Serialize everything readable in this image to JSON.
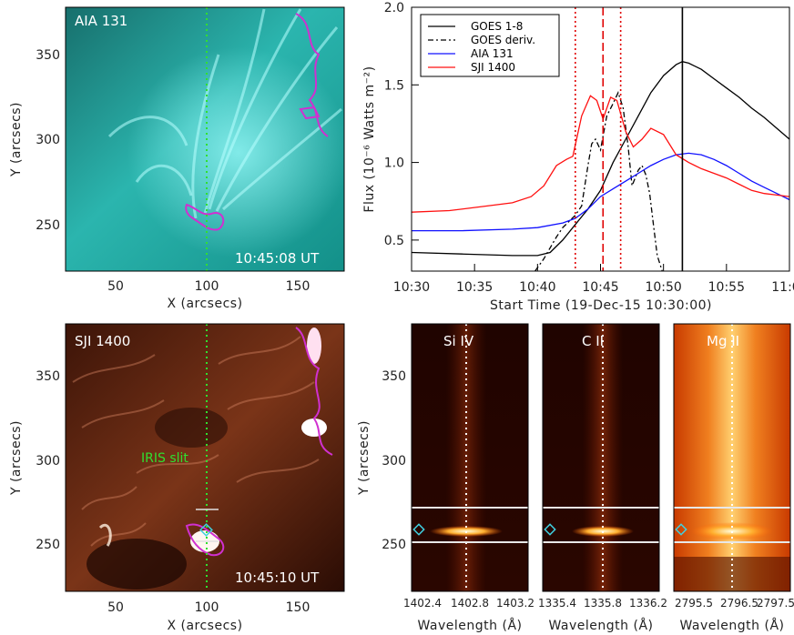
{
  "panels": {
    "aia": {
      "label": "AIA 131",
      "time": "10:45:08 UT",
      "xlabel": "X (arcsecs)",
      "ylabel": "Y (arcsecs)",
      "xticks": [
        "50",
        "100",
        "150"
      ],
      "yticks": [
        "250",
        "300",
        "350"
      ]
    },
    "sji": {
      "label": "SJI 1400",
      "time": "10:45:10 UT",
      "slit_label": "IRIS slit",
      "xlabel": "X (arcsecs)",
      "ylabel": "Y (arcsecs)",
      "xticks": [
        "50",
        "100",
        "150"
      ],
      "yticks": [
        "250",
        "300",
        "350"
      ]
    },
    "spectra": {
      "ylabel": "Y (arcsecs)",
      "yticks": [
        "250",
        "300",
        "350"
      ],
      "xlabel": "Wavelength (Å)",
      "items": [
        {
          "label": "Si IV",
          "ticks": [
            "1402.4",
            "1402.8",
            "1403.2"
          ]
        },
        {
          "label": "C II",
          "ticks": [
            "1335.4",
            "1335.8",
            "1336.2"
          ]
        },
        {
          "label": "Mg II",
          "ticks": [
            "2795.5",
            "2796.5",
            "2797.5"
          ]
        }
      ]
    }
  },
  "chart_data": {
    "type": "line",
    "xlabel": "Start Time (19-Dec-15 10:30:00)",
    "ylabel": "Flux (10⁻⁶ Watts m⁻²)",
    "xticks": [
      "10:30",
      "10:35",
      "10:40",
      "10:45",
      "10:50",
      "10:55",
      "11:0"
    ],
    "yticks": [
      "0.5",
      "1.0",
      "1.5",
      "2.0"
    ],
    "xlim_minutes": [
      0,
      30
    ],
    "ylim": [
      0.3,
      2.0
    ],
    "legend_position": "top-left",
    "vlines": [
      {
        "minute": 13.0,
        "style": "dotted",
        "color": "#e00000"
      },
      {
        "minute": 15.2,
        "style": "dashed",
        "color": "#e00000"
      },
      {
        "minute": 16.6,
        "style": "dotted",
        "color": "#e00000"
      },
      {
        "minute": 21.5,
        "style": "solid",
        "color": "#000000"
      }
    ],
    "series": [
      {
        "name": "GOES 1-8",
        "color": "#000000",
        "dash": "none",
        "x": [
          0,
          4,
          8,
          10,
          11,
          12,
          13,
          14,
          15,
          16,
          17,
          18,
          19,
          20,
          21,
          21.5,
          22,
          23,
          24,
          25,
          26,
          27,
          28,
          29,
          30
        ],
        "y": [
          0.42,
          0.41,
          0.4,
          0.4,
          0.42,
          0.5,
          0.6,
          0.7,
          0.82,
          1.0,
          1.15,
          1.3,
          1.45,
          1.56,
          1.63,
          1.65,
          1.64,
          1.6,
          1.54,
          1.48,
          1.42,
          1.35,
          1.29,
          1.22,
          1.15
        ]
      },
      {
        "name": "GOES deriv.",
        "color": "#000000",
        "dash": "6,3,2,3",
        "x": [
          9.8,
          10.5,
          11,
          11.5,
          12,
          12.5,
          13,
          13.5,
          14,
          14.3,
          14.6,
          15,
          15.5,
          16,
          16.4,
          16.8,
          17.2,
          17.5,
          18,
          18.3,
          18.6,
          18.9,
          19.2,
          19.5,
          19.9
        ],
        "y": [
          0.3,
          0.38,
          0.45,
          0.52,
          0.58,
          0.62,
          0.66,
          0.72,
          0.98,
          1.12,
          1.15,
          1.08,
          1.3,
          1.38,
          1.45,
          1.35,
          1.1,
          0.85,
          0.95,
          0.98,
          0.92,
          0.8,
          0.6,
          0.4,
          0.3
        ]
      },
      {
        "name": "AIA 131",
        "color": "#1010ff",
        "dash": "none",
        "x": [
          0,
          4,
          8,
          10,
          12,
          13,
          14,
          15,
          16,
          17,
          18,
          19,
          20,
          21,
          22,
          23,
          24,
          25,
          26,
          27,
          28,
          29,
          30
        ],
        "y": [
          0.56,
          0.56,
          0.57,
          0.58,
          0.61,
          0.64,
          0.7,
          0.78,
          0.83,
          0.88,
          0.93,
          0.98,
          1.02,
          1.05,
          1.06,
          1.05,
          1.02,
          0.98,
          0.93,
          0.88,
          0.84,
          0.8,
          0.76
        ]
      },
      {
        "name": "SJI 1400",
        "color": "#ff1010",
        "dash": "none",
        "x": [
          0,
          3,
          6,
          8,
          9.5,
          10.5,
          11.5,
          12.3,
          12.8,
          13.5,
          14.2,
          14.7,
          15.2,
          15.8,
          16.3,
          17,
          17.6,
          18.3,
          19,
          20,
          21,
          22,
          23,
          24,
          25,
          26,
          27,
          28,
          29,
          30
        ],
        "y": [
          0.68,
          0.69,
          0.72,
          0.74,
          0.78,
          0.85,
          0.98,
          1.02,
          1.04,
          1.3,
          1.43,
          1.4,
          1.28,
          1.42,
          1.4,
          1.2,
          1.1,
          1.15,
          1.22,
          1.18,
          1.05,
          1.0,
          0.96,
          0.93,
          0.9,
          0.86,
          0.82,
          0.8,
          0.79,
          0.78
        ]
      }
    ]
  },
  "colors": {
    "aia_bg": "#1ea5a0",
    "sji_bg": "#5a2410",
    "contour": "#d030d0",
    "slit": "#30e030",
    "marker": "#40d0e0"
  }
}
